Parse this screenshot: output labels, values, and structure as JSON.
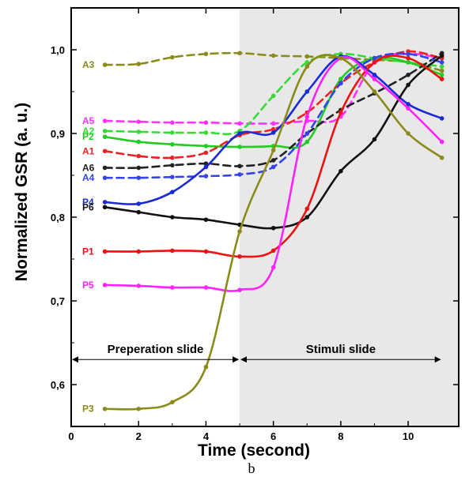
{
  "chart_data": {
    "type": "line",
    "xlabel": "Time (second)",
    "ylabel": "Normalized GSR (a. u.)",
    "caption": "b",
    "xlim": [
      0,
      11.5
    ],
    "ylim": [
      0.55,
      1.05
    ],
    "x_ticks": [
      0,
      2,
      4,
      6,
      8,
      10
    ],
    "x_tick_labels": [
      "0",
      "2",
      "4",
      "6",
      "8",
      "10"
    ],
    "y_ticks": [
      0.6,
      0.7,
      0.8,
      0.9,
      1.0
    ],
    "y_tick_labels": [
      "0,6",
      "0,7",
      "0,8",
      "0,9",
      "1,0"
    ],
    "grid": false,
    "shaded_region": {
      "x_start": 5,
      "x_end": 11.5,
      "color": "#e8e8e8"
    },
    "annotations": [
      {
        "text": "Preperation slide",
        "x_start": 0,
        "x_end": 5,
        "y": 0.63
      },
      {
        "text": "Stimuli slide",
        "x_start": 5,
        "x_end": 11,
        "y": 0.63
      }
    ],
    "series": [
      {
        "name": "A3",
        "style": "dashed",
        "color": "#8b8b1a",
        "x": [
          1,
          2,
          3,
          4,
          5,
          6,
          7,
          8,
          9,
          10,
          11
        ],
        "y": [
          0.982,
          0.983,
          0.991,
          0.995,
          0.996,
          0.993,
          0.992,
          0.99,
          0.988,
          0.985,
          0.975
        ]
      },
      {
        "name": "A5",
        "style": "dashed",
        "color": "#ff33ff",
        "x": [
          1,
          2,
          3,
          4,
          5,
          6,
          7,
          8,
          9,
          10,
          11
        ],
        "y": [
          0.915,
          0.914,
          0.913,
          0.913,
          0.912,
          0.912,
          0.915,
          0.92,
          0.985,
          0.995,
          0.99
        ]
      },
      {
        "name": "A2",
        "style": "dashed",
        "color": "#33dd33",
        "x": [
          1,
          2,
          3,
          4,
          5,
          6,
          7,
          8,
          9,
          10,
          11
        ],
        "y": [
          0.903,
          0.902,
          0.901,
          0.901,
          0.903,
          0.945,
          0.985,
          0.995,
          0.99,
          0.985,
          0.98
        ]
      },
      {
        "name": "P2",
        "style": "solid",
        "color": "#22cc22",
        "x": [
          1,
          2,
          3,
          4,
          5,
          6,
          7,
          8,
          9,
          10,
          11
        ],
        "y": [
          0.896,
          0.89,
          0.887,
          0.885,
          0.884,
          0.885,
          0.89,
          0.965,
          0.99,
          0.985,
          0.97
        ]
      },
      {
        "name": "A1",
        "style": "dashed",
        "color": "#ee2222",
        "x": [
          1,
          2,
          3,
          4,
          5,
          6,
          7,
          8,
          9,
          10,
          11
        ],
        "y": [
          0.879,
          0.873,
          0.871,
          0.877,
          0.898,
          0.905,
          0.925,
          0.96,
          0.985,
          0.998,
          0.99
        ]
      },
      {
        "name": "A6",
        "style": "dashed",
        "color": "#222222",
        "x": [
          1,
          2,
          3,
          4,
          5,
          6,
          7,
          8,
          9,
          10,
          11
        ],
        "y": [
          0.859,
          0.859,
          0.862,
          0.864,
          0.861,
          0.868,
          0.9,
          0.928,
          0.948,
          0.97,
          0.996
        ]
      },
      {
        "name": "A4",
        "style": "dashed",
        "color": "#3344ee",
        "x": [
          1,
          2,
          3,
          4,
          5,
          6,
          7,
          8,
          9,
          10,
          11
        ],
        "y": [
          0.847,
          0.847,
          0.848,
          0.849,
          0.851,
          0.86,
          0.9,
          0.96,
          0.99,
          0.995,
          0.985
        ]
      },
      {
        "name": "P4",
        "style": "solid",
        "color": "#1a2ad6",
        "x": [
          1,
          2,
          3,
          4,
          5,
          6,
          7,
          8,
          9,
          10,
          11
        ],
        "y": [
          0.818,
          0.816,
          0.83,
          0.86,
          0.9,
          0.901,
          0.95,
          0.992,
          0.97,
          0.935,
          0.918
        ]
      },
      {
        "name": "P6",
        "style": "solid",
        "color": "#111111",
        "x": [
          1,
          2,
          3,
          4,
          5,
          6,
          7,
          8,
          9,
          10,
          11
        ],
        "y": [
          0.812,
          0.806,
          0.8,
          0.797,
          0.791,
          0.787,
          0.8,
          0.855,
          0.893,
          0.958,
          0.993
        ]
      },
      {
        "name": "P1",
        "style": "solid",
        "color": "#ee1111",
        "x": [
          1,
          2,
          3,
          4,
          5,
          6,
          7,
          8,
          9,
          10,
          11
        ],
        "y": [
          0.759,
          0.759,
          0.76,
          0.759,
          0.753,
          0.76,
          0.81,
          0.925,
          0.985,
          0.99,
          0.965
        ]
      },
      {
        "name": "P5",
        "style": "solid",
        "color": "#ff22ff",
        "x": [
          1,
          2,
          3,
          4,
          5,
          6,
          7,
          8,
          9,
          10,
          11
        ],
        "y": [
          0.719,
          0.718,
          0.716,
          0.716,
          0.713,
          0.74,
          0.92,
          0.99,
          0.965,
          0.93,
          0.89
        ]
      },
      {
        "name": "P3",
        "style": "solid",
        "color": "#8b8b1a",
        "x": [
          1,
          2,
          3,
          4,
          5,
          6,
          7,
          8,
          9,
          10,
          11
        ],
        "y": [
          0.571,
          0.571,
          0.579,
          0.621,
          0.783,
          0.88,
          0.98,
          0.99,
          0.95,
          0.9,
          0.871
        ]
      }
    ]
  }
}
